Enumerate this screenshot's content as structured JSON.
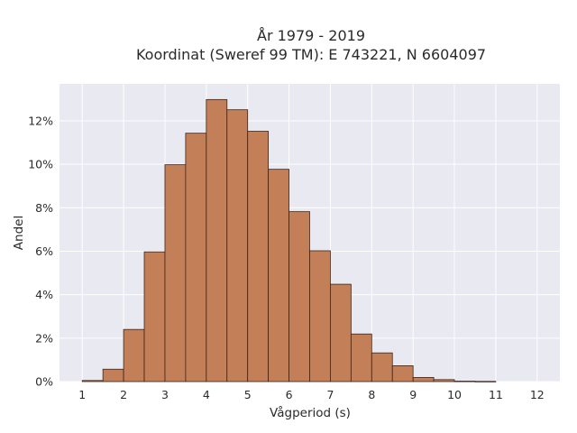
{
  "chart_data": {
    "type": "bar",
    "title": "År 1979 - 2019",
    "subtitle": "Koordinat (Sweref 99 TM): E 743221, N 6604097",
    "xlabel": "Vågperiod (s)",
    "ylabel": "Andel",
    "xlim": [
      0.45,
      12.55
    ],
    "ylim": [
      0,
      0.137
    ],
    "xticks": [
      1,
      2,
      3,
      4,
      5,
      6,
      7,
      8,
      9,
      10,
      11,
      12
    ],
    "yticks": [
      0,
      0.02,
      0.04,
      0.06,
      0.08,
      0.1,
      0.12
    ],
    "ytick_labels": [
      "0%",
      "2%",
      "4%",
      "6%",
      "8%",
      "10%",
      "12%"
    ],
    "bin_width": 0.5,
    "bin_starts": [
      1.0,
      1.5,
      2.0,
      2.5,
      3.0,
      3.5,
      4.0,
      4.5,
      5.0,
      5.5,
      6.0,
      6.5,
      7.0,
      7.5,
      8.0,
      8.5,
      9.0,
      9.5,
      10.0,
      10.5
    ],
    "values": [
      0.0005,
      0.0057,
      0.024,
      0.0597,
      0.0998,
      0.1143,
      0.1298,
      0.1251,
      0.1152,
      0.0977,
      0.0782,
      0.0602,
      0.0448,
      0.0219,
      0.0132,
      0.0073,
      0.0019,
      0.0009,
      0.0002,
      0.0001
    ],
    "grid": true,
    "colors": {
      "bar_fill": "#c27f58",
      "bar_edge": "#3d2418",
      "plot_background": "#e9e9f1",
      "grid": "#ffffff"
    }
  }
}
